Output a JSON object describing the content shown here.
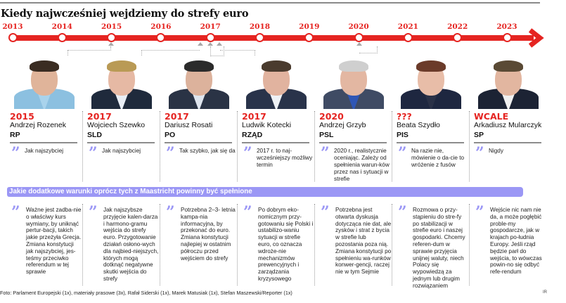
{
  "title": "Kiedy najwcześniej wejdziemy do strefy euro",
  "colors": {
    "accent_red": "#e52421",
    "accent_violet": "#9b97f5",
    "rule_gray": "#8d8d8d"
  },
  "timeline": {
    "years": [
      "2013",
      "2014",
      "2015",
      "2016",
      "2017",
      "2018",
      "2019",
      "2020",
      "2021",
      "2022",
      "2023"
    ],
    "arrow_icon": "arrow-right-icon"
  },
  "people": [
    {
      "year": "2015",
      "name": "Andrzej Rozenek",
      "party": "RP",
      "quote": "Jak najszybciej",
      "condition": "Ważne jest zadba-nie o właściwy kurs wymiany, by uniknąć pertur-bacji, takich jakie przeżyła Grecja. Zmiana konstytucji jak najszybciej, jes-teśmy przeciwko referendum w tej sprawie"
    },
    {
      "year": "2017",
      "name": "Wojciech Szewko",
      "party": "SLD",
      "quote": "Jak najszybciej",
      "condition": "Jak najszybsze przyjęcie kalen-darza i harmono-gramu wejścia do strefy euro. Przygotowanie działań osłono-wych dla najbied-niejszych, których mogą dotknąć negatywne skutki wejścia do strefy"
    },
    {
      "year": "2017",
      "name": "Dariusz Rosati",
      "party": "PO",
      "quote": "Tak szybko, jak się da",
      "condition": "Potrzebna 2–3- letnia kampa-nia informacyjna, by przekonać do euro. Zmiana konstytucji najlepiej w ostatnim półroczu przed wejściem do strefy"
    },
    {
      "year": "2017",
      "name": "Ludwik Kotecki",
      "party": "RZĄD",
      "quote": "2017 r. to naj-wcześniejszy możliwy termin",
      "condition": "Po dobrym eko-nomicznym przy-gotowaniu się Polski i ustabilizo-waniu sytuacji w strefie euro, co oznacza wdroże-nie mechanizmów prewencyjnych i zarządzania kryzysowego"
    },
    {
      "year": "2020",
      "name": "Andrzej Grzyb",
      "party": "PSL",
      "quote": "2020 r., realistycznie oceniając. Zależy od spełnienia warun-ków przez nas i sytuacji w strefie",
      "condition": "Potrzebna jest otwarta dyskusja dotycząca nie dat, ale zysków i strat z bycia w strefie lub pozostania poza nią. Zmiana konstytucji po spełnieniu wa-runków konwer-gencji, raczej nie w tym Sejmie"
    },
    {
      "year": "???",
      "name": "Beata Szydło",
      "party": "PIS",
      "quote": "Na razie nie, mówienie o da-cie to wróżenie z fusów",
      "condition": "Rozmowa o przy-stąpieniu do stre-fy po stabilizacji w strefie euro i naszej gospodarki. Chcemy referen-dum w sprawie przyjęcia unijnej waluty, niech Polacy się wypowiedzą za jednym lub drugim rozwiązaniem"
    },
    {
      "year": "WCALE",
      "name": "Arkadiusz Mularczyk",
      "party": "SP",
      "quote": "Nigdy",
      "condition": "Wejście nic nam nie da, a może pogłębić proble-my gospodarcze, jak w krajach po-łudnia Europy. Jeśli rząd będzie parł do wejścia, to wówczas powin-no się odbyć refe-rendum"
    }
  ],
  "quote_glyph": "”",
  "conditions_banner": "Jakie dodatkowe warunki oprócz tych z Maastricht powinny być spełnione",
  "credits": "Foto: Parlament Europejski (1x), materiały prasowe (3x), Rafał Siderski (1x), Marek Matusiak (1x), Stefan Maszewski/Reporter (1x)",
  "signature": "IR"
}
